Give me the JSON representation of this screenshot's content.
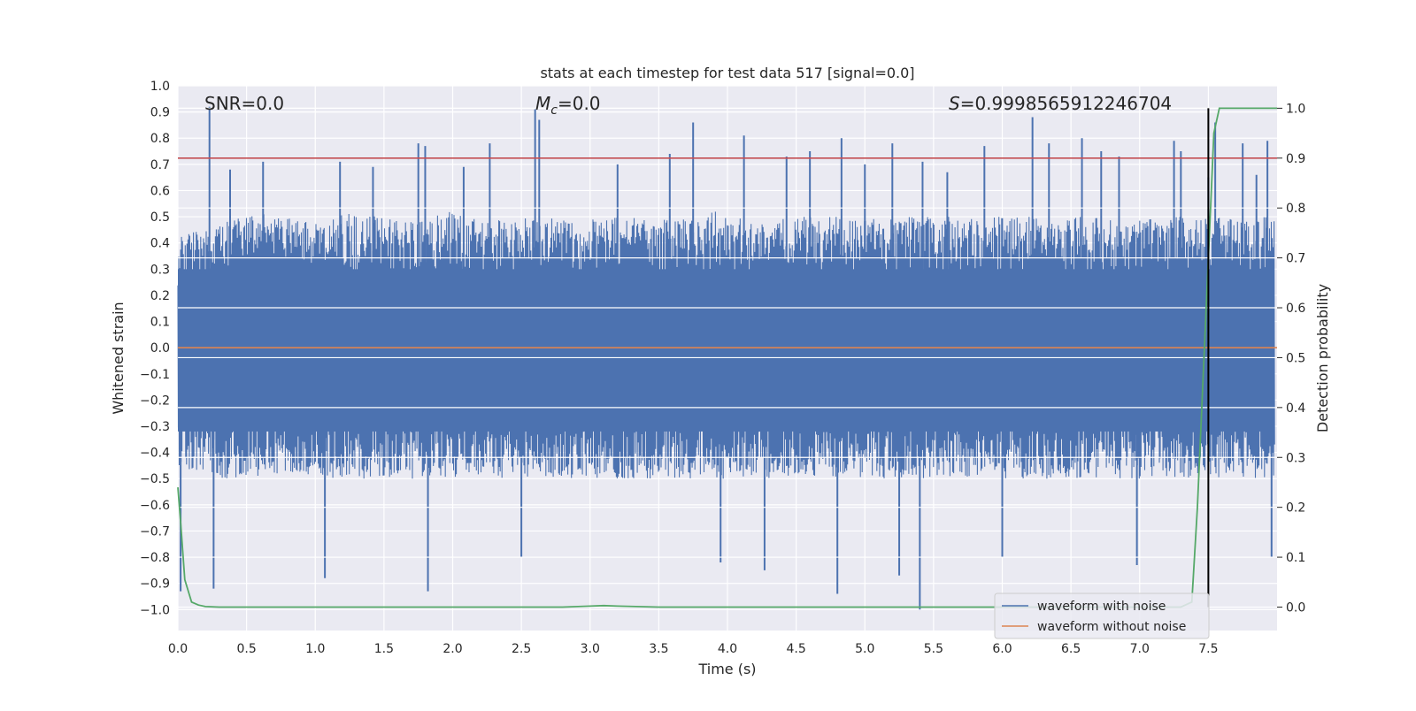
{
  "chart_data": {
    "type": "line",
    "title": "stats at each timestep for test data 517 [signal=0.0]",
    "xlabel": "Time (s)",
    "ylabel": "Whitened strain",
    "y2label": "Detection probability",
    "xlim": [
      0.0,
      8.0
    ],
    "ylim": [
      -1.08,
      1.0
    ],
    "y2lim": [
      -0.047,
      1.045
    ],
    "x_ticks": [
      "0.0",
      "0.5",
      "1.0",
      "1.5",
      "2.0",
      "2.5",
      "3.0",
      "3.5",
      "4.0",
      "4.5",
      "5.0",
      "5.5",
      "6.0",
      "6.5",
      "7.0",
      "7.5"
    ],
    "y_ticks": [
      "1.0",
      "0.9",
      "0.8",
      "0.7",
      "0.6",
      "0.5",
      "0.4",
      "0.3",
      "0.2",
      "0.1",
      "0.0",
      "−0.1",
      "−0.2",
      "−0.3",
      "−0.4",
      "−0.5",
      "−0.6",
      "−0.7",
      "−0.8",
      "−0.9",
      "−1.0"
    ],
    "y2_ticks": [
      "1.0",
      "0.9",
      "0.8",
      "0.7",
      "0.6",
      "0.5",
      "0.4",
      "0.3",
      "0.2",
      "0.1",
      "0.0"
    ],
    "annotations": {
      "snr": "SNR=0.0",
      "mc_symbol": "M",
      "mc_sub": "c",
      "mc_value": "=0.0",
      "s_symbol": "S",
      "s_value": "=0.9998565912246704"
    },
    "legend": [
      "waveform with noise",
      "waveform without noise"
    ],
    "threshold_y2": 0.9,
    "detection_time": 7.5,
    "series": [
      {
        "name": "waveform with noise",
        "axis": "left",
        "color": "#4c72b0",
        "note": "dense noise trace",
        "envelope_upper": [
          0.42,
          0.45,
          0.48,
          0.5,
          0.52,
          0.5,
          0.48,
          0.5,
          0.52,
          0.5,
          0.48,
          0.5,
          0.52,
          0.5,
          0.49,
          0.5,
          0.52,
          0.5,
          0.48,
          0.5,
          0.51,
          0.5,
          0.49,
          0.5,
          0.52,
          0.5,
          0.48,
          0.5,
          0.5,
          0.5,
          0.5,
          0.5,
          0.5,
          0.5,
          0.5,
          0.5,
          0.5,
          0.5,
          0.5,
          0.5,
          0.5,
          0.5,
          0.5,
          0.5,
          0.5,
          0.5,
          0.5,
          0.5,
          0.5,
          0.5
        ],
        "envelope_lower": [
          -0.45,
          -0.48,
          -0.5,
          -0.5,
          -0.5,
          -0.5,
          -0.5,
          -0.5,
          -0.5,
          -0.5,
          -0.5,
          -0.5,
          -0.5,
          -0.5,
          -0.5,
          -0.5,
          -0.5,
          -0.5,
          -0.5,
          -0.5,
          -0.5,
          -0.5,
          -0.5,
          -0.5,
          -0.5,
          -0.5,
          -0.5,
          -0.5,
          -0.5,
          -0.5,
          -0.5,
          -0.5,
          -0.5,
          -0.5,
          -0.5,
          -0.5,
          -0.5,
          -0.5,
          -0.5,
          -0.5,
          -0.5,
          -0.5,
          -0.5,
          -0.5,
          -0.5,
          -0.5,
          -0.5,
          -0.5,
          -0.5,
          -0.5
        ],
        "spikes": [
          [
            0.02,
            -0.93
          ],
          [
            0.23,
            0.92
          ],
          [
            0.26,
            -0.92
          ],
          [
            0.38,
            0.68
          ],
          [
            0.62,
            0.71
          ],
          [
            0.88,
            0.13
          ],
          [
            1.07,
            -0.88
          ],
          [
            1.18,
            0.71
          ],
          [
            1.42,
            0.69
          ],
          [
            1.75,
            0.78
          ],
          [
            1.8,
            0.77
          ],
          [
            1.82,
            -0.93
          ],
          [
            2.08,
            0.69
          ],
          [
            2.27,
            0.78
          ],
          [
            2.5,
            -0.8
          ],
          [
            2.6,
            0.91
          ],
          [
            2.63,
            0.87
          ],
          [
            3.2,
            0.7
          ],
          [
            3.58,
            0.74
          ],
          [
            3.75,
            0.86
          ],
          [
            3.95,
            -0.82
          ],
          [
            4.12,
            0.81
          ],
          [
            4.27,
            -0.85
          ],
          [
            4.43,
            0.73
          ],
          [
            4.6,
            0.75
          ],
          [
            4.8,
            -0.94
          ],
          [
            4.83,
            0.8
          ],
          [
            5.0,
            0.7
          ],
          [
            5.2,
            0.78
          ],
          [
            5.25,
            -0.87
          ],
          [
            5.4,
            -1.0
          ],
          [
            5.42,
            0.71
          ],
          [
            5.6,
            0.67
          ],
          [
            5.87,
            0.77
          ],
          [
            6.22,
            0.88
          ],
          [
            6.0,
            -0.8
          ],
          [
            6.34,
            0.78
          ],
          [
            6.58,
            0.8
          ],
          [
            6.72,
            0.75
          ],
          [
            6.85,
            0.73
          ],
          [
            6.98,
            -0.83
          ],
          [
            7.25,
            0.79
          ],
          [
            7.3,
            0.75
          ],
          [
            7.5,
            0.65
          ],
          [
            7.55,
            0.86
          ],
          [
            7.75,
            0.78
          ],
          [
            7.85,
            0.66
          ],
          [
            7.93,
            0.79
          ],
          [
            7.96,
            -0.8
          ]
        ]
      },
      {
        "name": "waveform without noise",
        "axis": "left",
        "color": "#dd8452",
        "x": [
          0.0,
          8.0
        ],
        "y": [
          0.0,
          0.0
        ]
      },
      {
        "name": "detection probability",
        "axis": "right",
        "color": "#55a868",
        "x": [
          0.0,
          0.02,
          0.05,
          0.1,
          0.15,
          0.2,
          0.3,
          0.5,
          0.7,
          1.0,
          2.0,
          2.8,
          3.0,
          3.1,
          3.2,
          3.5,
          4.0,
          5.0,
          6.0,
          7.0,
          7.3,
          7.38,
          7.42,
          7.46,
          7.5,
          7.54,
          7.58,
          8.0
        ],
        "y": [
          0.24,
          0.17,
          0.055,
          0.01,
          0.004,
          0.001,
          0.0,
          0.0,
          0.0,
          0.0,
          0.0,
          0.0,
          0.002,
          0.003,
          0.002,
          0.0,
          0.0,
          0.0,
          0.0,
          0.0,
          0.0,
          0.01,
          0.2,
          0.45,
          0.7,
          0.95,
          1.0,
          1.0
        ]
      }
    ]
  }
}
